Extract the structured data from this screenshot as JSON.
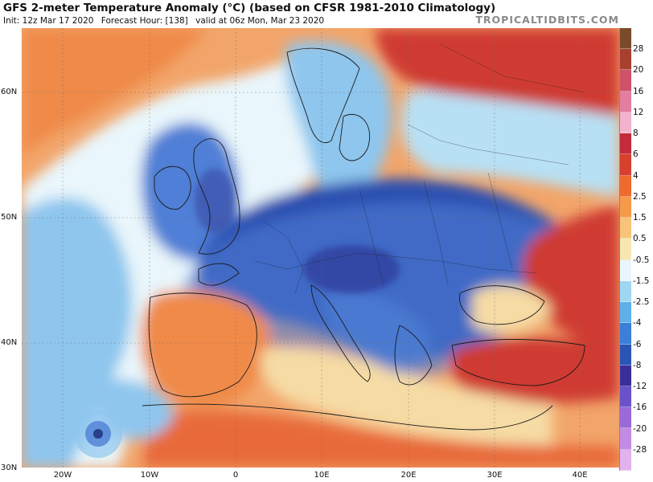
{
  "header": {
    "title": "GFS 2-meter Temperature Anomaly (°C) (based on CFSR 1981-2010 Climatology)",
    "init": "Init: 12z Mar 17 2020",
    "forecast_hour": "Forecast Hour: [138]",
    "valid": "valid at 06z Mon, Mar 23 2020",
    "brand": "TROPICALTIDBITS.COM"
  },
  "map": {
    "lat_labels": [
      "60N",
      "50N",
      "40N",
      "30N"
    ],
    "lon_labels": [
      "20W",
      "10W",
      "0",
      "10E",
      "20E",
      "30E",
      "40E"
    ],
    "colors": {
      "ocean_warm": "#f2a56a",
      "cold_deep": "#2a4fb0",
      "cold_mid": "#4f7fd6",
      "cool": "#8ec6ee",
      "near_zero": "#e9f6fb",
      "warm_light": "#f6dba4",
      "warm": "#ef8a4a",
      "hot": "#cf3a32"
    }
  },
  "colorbar": {
    "labels": [
      "28",
      "20",
      "16",
      "12",
      "8",
      "6",
      "4",
      "2.5",
      "1.5",
      "0.5",
      "-0.5",
      "-1.5",
      "-2.5",
      "-4",
      "-6",
      "-8",
      "-12",
      "-16",
      "-20",
      "-28"
    ],
    "colors": [
      "#7a4a2a",
      "#a8402f",
      "#d0526a",
      "#e47ea0",
      "#f4b3cc",
      "#c32a3a",
      "#d8402e",
      "#ee6a2e",
      "#f59a4a",
      "#f7c47a",
      "#f6e6b2",
      "#e8f6fb",
      "#9fd7f2",
      "#5fb0ea",
      "#3c7fd8",
      "#2a55b4",
      "#3a2f9a",
      "#6a52c8",
      "#9a6ad8",
      "#c38be4",
      "#e2b2ee"
    ]
  }
}
